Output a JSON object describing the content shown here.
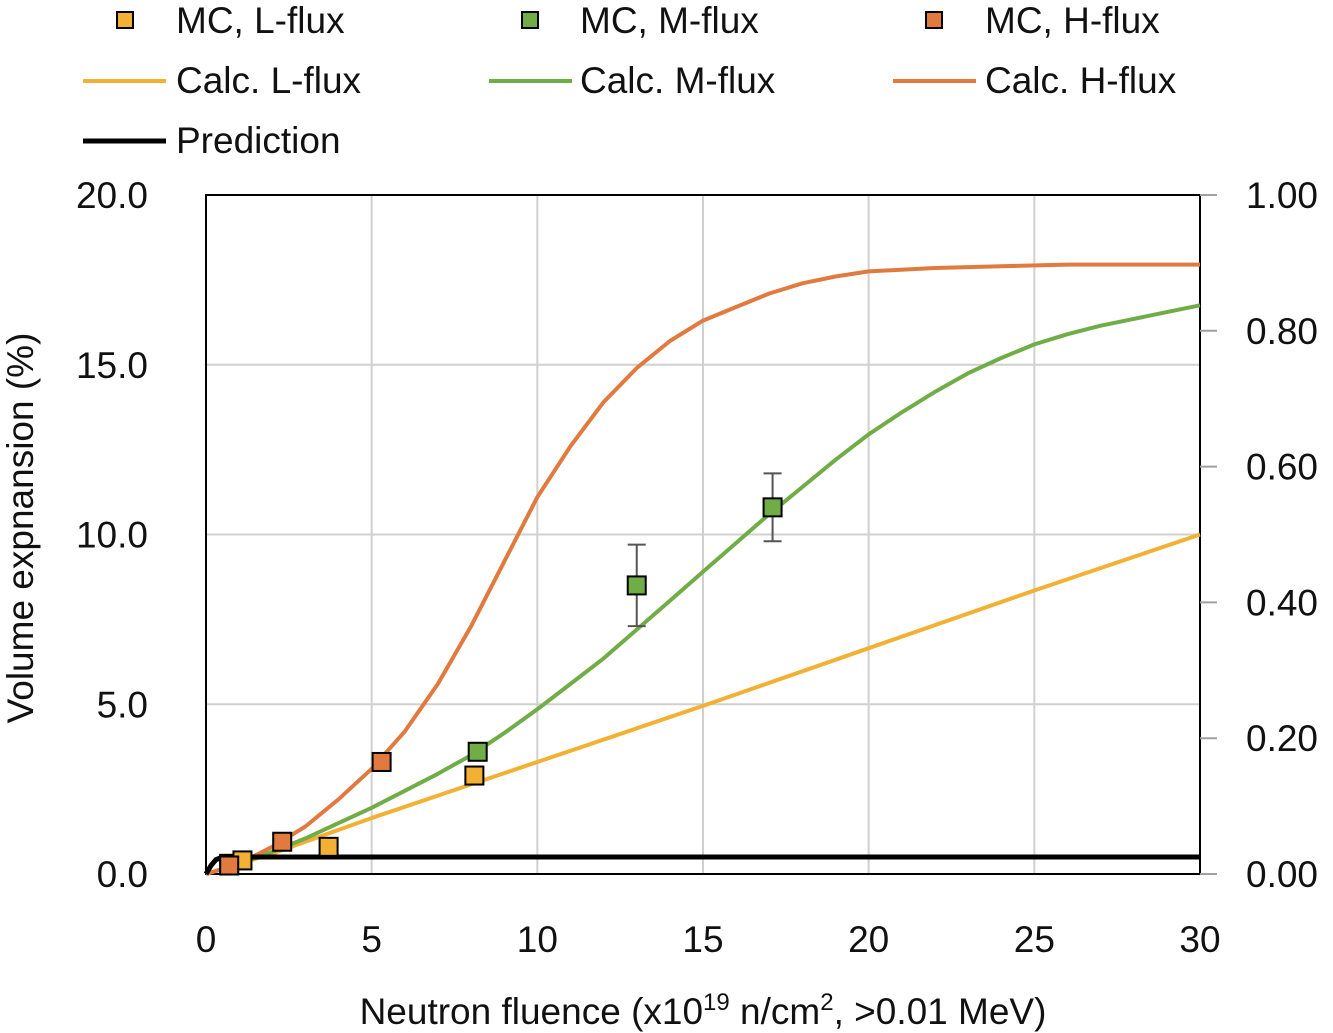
{
  "chart_data": {
    "type": "scatter",
    "xlabel": {
      "prefix": "Neutron fluence (x10",
      "sup": "19",
      "mid": " n/cm",
      "sup2": "2",
      "suffix": ", >0.01 MeV)"
    },
    "ylabel": "Volume expnansion (%)",
    "xlim": [
      0,
      30
    ],
    "ylim": [
      0,
      20
    ],
    "y2lim": [
      0,
      1
    ],
    "grid": true,
    "legend_position": "top",
    "xticks": [
      0,
      5,
      10,
      15,
      20,
      25,
      30
    ],
    "xtick_labels": [
      "0",
      "5",
      "10",
      "15",
      "20",
      "25",
      "30"
    ],
    "yticks": [
      0,
      5,
      10,
      15,
      20
    ],
    "ytick_labels": [
      "0.0",
      "5.0",
      "10.0",
      "15.0",
      "20.0"
    ],
    "y2ticks": [
      0,
      0.2,
      0.4,
      0.6,
      0.8,
      1.0
    ],
    "y2tick_labels": [
      "0.00",
      "0.20",
      "0.40",
      "0.60",
      "0.80",
      "1.00"
    ],
    "marker_series": [
      {
        "name": "MC, L-flux",
        "color": "#F2B134",
        "points": [
          [
            0.7,
            0.3
          ],
          [
            1.1,
            0.4
          ],
          [
            3.7,
            0.8
          ],
          [
            8.1,
            2.9
          ]
        ]
      },
      {
        "name": "MC, M-flux",
        "color": "#70AD47",
        "points": [
          [
            8.2,
            3.6
          ],
          [
            13.0,
            8.5
          ],
          [
            17.1,
            10.8
          ]
        ],
        "error": [
          null,
          1.2,
          1.0
        ]
      },
      {
        "name": "MC, H-flux",
        "color": "#E07A3F",
        "points": [
          [
            0.7,
            0.25
          ],
          [
            2.3,
            0.95
          ],
          [
            5.3,
            3.3
          ]
        ]
      }
    ],
    "line_series": [
      {
        "name": "Calc. L-flux",
        "color": "#F2B134",
        "points": [
          [
            0,
            0
          ],
          [
            2,
            0.6
          ],
          [
            5,
            1.65
          ],
          [
            10,
            3.3
          ],
          [
            15,
            4.95
          ],
          [
            20,
            6.65
          ],
          [
            25,
            8.35
          ],
          [
            30,
            10.0
          ]
        ]
      },
      {
        "name": "Calc. M-flux",
        "color": "#70AD47",
        "points": [
          [
            0,
            0
          ],
          [
            1,
            0.3
          ],
          [
            2,
            0.65
          ],
          [
            3,
            1.05
          ],
          [
            4,
            1.5
          ],
          [
            5,
            1.95
          ],
          [
            6,
            2.45
          ],
          [
            7,
            2.95
          ],
          [
            8,
            3.5
          ],
          [
            9,
            4.15
          ],
          [
            10,
            4.85
          ],
          [
            11,
            5.6
          ],
          [
            12,
            6.35
          ],
          [
            13,
            7.2
          ],
          [
            14,
            8.05
          ],
          [
            15,
            8.9
          ],
          [
            16,
            9.75
          ],
          [
            17,
            10.6
          ],
          [
            18,
            11.4
          ],
          [
            19,
            12.2
          ],
          [
            20,
            12.95
          ],
          [
            21,
            13.6
          ],
          [
            22,
            14.2
          ],
          [
            23,
            14.75
          ],
          [
            24,
            15.2
          ],
          [
            25,
            15.6
          ],
          [
            26,
            15.9
          ],
          [
            27,
            16.15
          ],
          [
            28,
            16.35
          ],
          [
            29,
            16.55
          ],
          [
            30,
            16.75
          ]
        ]
      },
      {
        "name": "Calc. H-flux",
        "color": "#E07A3F",
        "points": [
          [
            0,
            0
          ],
          [
            1,
            0.3
          ],
          [
            2,
            0.8
          ],
          [
            3,
            1.4
          ],
          [
            4,
            2.2
          ],
          [
            5,
            3.1
          ],
          [
            6,
            4.2
          ],
          [
            7,
            5.6
          ],
          [
            8,
            7.3
          ],
          [
            9,
            9.2
          ],
          [
            10,
            11.1
          ],
          [
            11,
            12.6
          ],
          [
            12,
            13.9
          ],
          [
            13,
            14.9
          ],
          [
            14,
            15.7
          ],
          [
            15,
            16.3
          ],
          [
            16,
            16.7
          ],
          [
            17,
            17.1
          ],
          [
            18,
            17.4
          ],
          [
            19,
            17.6
          ],
          [
            20,
            17.75
          ],
          [
            22,
            17.85
          ],
          [
            24,
            17.9
          ],
          [
            26,
            17.95
          ],
          [
            30,
            17.95
          ]
        ]
      },
      {
        "name": "Prediction",
        "color": "#000000",
        "points": [
          [
            0,
            0
          ],
          [
            0.15,
            0.25
          ],
          [
            0.3,
            0.42
          ],
          [
            0.5,
            0.5
          ],
          [
            1,
            0.5
          ],
          [
            30,
            0.5
          ]
        ]
      }
    ]
  }
}
